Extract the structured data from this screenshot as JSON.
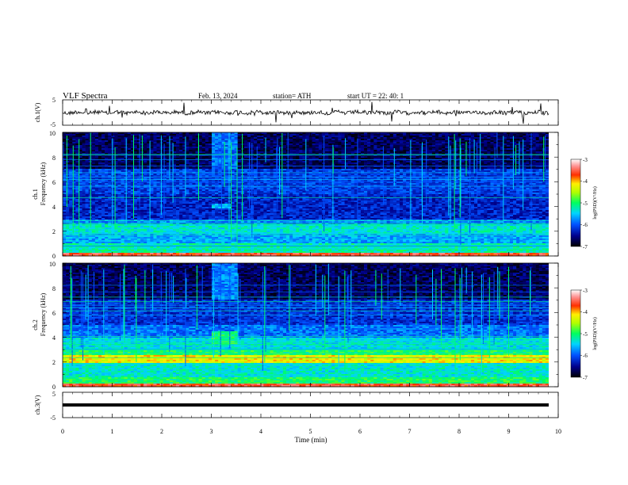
{
  "header": {
    "title": "VLF  Spectra",
    "date": "Feb. 13, 2024",
    "station": "station= ATH",
    "start": "start  UT  =    22: 40: 1"
  },
  "chart_data": [
    {
      "type": "line",
      "name": "ch1-waveform",
      "ylabel": "ch.1(V)",
      "ylim": [
        -5,
        5
      ],
      "yticks": [
        "5",
        "-5"
      ],
      "xlim": [
        0,
        10
      ]
    },
    {
      "type": "heatmap",
      "name": "ch1-spectrogram",
      "ylabel": [
        "ch.1",
        "Frequency  (kHz)"
      ],
      "ylim": [
        0,
        10
      ],
      "yticks": [
        "0",
        "2",
        "4",
        "6",
        "8",
        "10"
      ],
      "xlim": [
        0,
        10
      ],
      "colorbar": {
        "label": "log(PSD)(V²/Hz)",
        "range": [
          -7,
          -3
        ],
        "ticks": [
          "-3",
          "-4",
          "-5",
          "-6",
          "-7"
        ]
      }
    },
    {
      "type": "heatmap",
      "name": "ch2-spectrogram",
      "ylabel": [
        "ch.2",
        "Frequency  (kHz)"
      ],
      "ylim": [
        0,
        10
      ],
      "yticks": [
        "0",
        "2",
        "4",
        "6",
        "8",
        "10"
      ],
      "xlim": [
        0,
        10
      ],
      "colorbar": {
        "label": "log(PSD)(V²/Hz)",
        "range": [
          -7,
          -3
        ],
        "ticks": [
          "-3",
          "-4",
          "-5",
          "-6",
          "-7"
        ]
      }
    },
    {
      "type": "line",
      "name": "ch3-waveform",
      "ylabel": "ch.3(V)",
      "ylim": [
        -5,
        5
      ],
      "yticks": [
        "5",
        "-5"
      ],
      "xlim": [
        0,
        10
      ],
      "xlabel": "Time  (min)",
      "xticks": [
        "0",
        "1",
        "2",
        "3",
        "4",
        "5",
        "6",
        "7",
        "8",
        "9",
        "10"
      ]
    }
  ]
}
